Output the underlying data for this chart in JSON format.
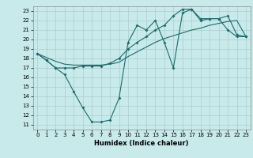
{
  "title": "",
  "xlabel": "Humidex (Indice chaleur)",
  "background_color": "#c8eaea",
  "line_color": "#1a6b6b",
  "grid_color": "#aacccc",
  "xlim": [
    -0.5,
    23.5
  ],
  "ylim": [
    10.5,
    23.5
  ],
  "xticks": [
    0,
    1,
    2,
    3,
    4,
    5,
    6,
    7,
    8,
    9,
    10,
    11,
    12,
    13,
    14,
    15,
    16,
    17,
    18,
    19,
    20,
    21,
    22,
    23
  ],
  "yticks": [
    11,
    12,
    13,
    14,
    15,
    16,
    17,
    18,
    19,
    20,
    21,
    22,
    23
  ],
  "line1_x": [
    0,
    1,
    2,
    3,
    4,
    5,
    6,
    7,
    8,
    9,
    10,
    11,
    12,
    13,
    14,
    15,
    16,
    17,
    18,
    19,
    20,
    21,
    22,
    23
  ],
  "line1_y": [
    18.5,
    17.8,
    17.0,
    16.3,
    14.5,
    12.8,
    11.3,
    11.3,
    11.5,
    13.8,
    19.7,
    21.5,
    21.0,
    22.0,
    19.7,
    17.0,
    22.8,
    23.2,
    22.0,
    22.2,
    22.2,
    21.0,
    20.3,
    20.3
  ],
  "line2_x": [
    0,
    1,
    2,
    3,
    4,
    5,
    6,
    7,
    8,
    9,
    10,
    11,
    12,
    13,
    14,
    15,
    16,
    17,
    18,
    19,
    20,
    21,
    22,
    23
  ],
  "line2_y": [
    18.5,
    18.1,
    17.7,
    17.4,
    17.3,
    17.3,
    17.3,
    17.3,
    17.4,
    17.6,
    18.2,
    18.7,
    19.2,
    19.7,
    20.1,
    20.4,
    20.7,
    21.0,
    21.2,
    21.5,
    21.7,
    21.9,
    22.0,
    20.3
  ],
  "line3_x": [
    0,
    1,
    2,
    3,
    4,
    5,
    6,
    7,
    8,
    9,
    10,
    11,
    12,
    13,
    14,
    15,
    16,
    17,
    18,
    19,
    20,
    21,
    22,
    23
  ],
  "line3_y": [
    18.5,
    17.8,
    17.0,
    17.0,
    17.0,
    17.2,
    17.2,
    17.2,
    17.5,
    18.0,
    19.0,
    19.7,
    20.3,
    21.0,
    21.5,
    22.5,
    23.2,
    23.2,
    22.2,
    22.2,
    22.2,
    22.5,
    20.5,
    20.3
  ],
  "xlabel_fontsize": 6,
  "tick_fontsize": 5
}
